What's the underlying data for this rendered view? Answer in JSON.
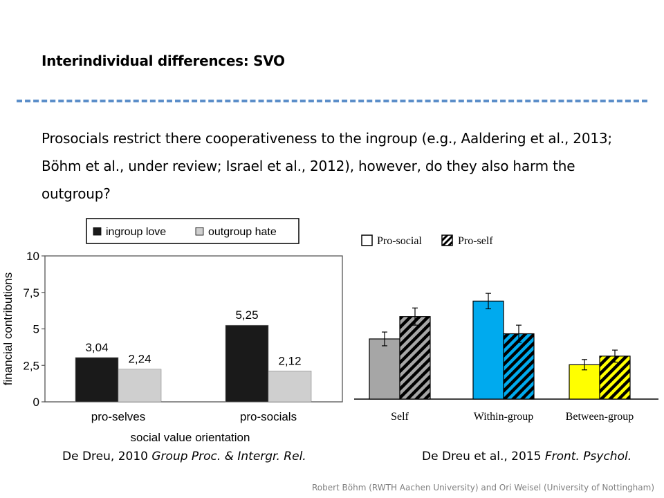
{
  "slide": {
    "title": "Interindividual differences: SVO",
    "body": "Prosocials restrict there cooperativeness to the ingroup (e.g., Aaldering et al., 2013; Böhm et al., under review; Israel et al., 2012), however, do they also harm the outgroup?",
    "footer": "Robert Böhm (RWTH Aachen University) and Ori Weisel (University of Nottingham)",
    "divider_color": "#5b8ec9"
  },
  "captions": {
    "left": {
      "plain": "De Dreu, 2010 ",
      "italic": "Group Proc. & Intergr. Rel."
    },
    "right": {
      "plain": "De Dreu et al., 2015 ",
      "italic": "Front. Psychol."
    }
  },
  "chart_data": [
    {
      "type": "bar",
      "categories": [
        "pro-selves",
        "pro-socials"
      ],
      "series": [
        {
          "name": "ingroup love",
          "values": [
            3.04,
            5.25
          ],
          "labels": [
            "3,04",
            "5,25"
          ],
          "color": "#1a1a1a"
        },
        {
          "name": "outgroup hate",
          "values": [
            2.24,
            2.12
          ],
          "labels": [
            "2,24",
            "2,12"
          ],
          "color": "#cfcfcf"
        }
      ],
      "xlabel": "social value orientation",
      "ylabel": "financial contributions",
      "ylim": [
        0,
        10
      ],
      "yticks": [
        "0",
        "2,5",
        "5",
        "7,5",
        "10"
      ],
      "legend": "top"
    },
    {
      "type": "bar",
      "categories": [
        "Self",
        "Within-group",
        "Between-group"
      ],
      "series": [
        {
          "name": "Pro-social",
          "values": [
            3.5,
            5.7,
            2.0
          ],
          "errors": [
            0.4,
            0.45,
            0.3
          ]
        },
        {
          "name": "Pro-self",
          "values": [
            4.8,
            3.8,
            2.5
          ],
          "errors": [
            0.5,
            0.5,
            0.35
          ]
        }
      ],
      "category_colors": [
        "#a6a6a6",
        "#00aaee",
        "#ffff00"
      ],
      "ylim": [
        0,
        7
      ],
      "legend": "top-left",
      "pattern": {
        "Pro-social": "solid",
        "Pro-self": "hatched"
      }
    }
  ]
}
